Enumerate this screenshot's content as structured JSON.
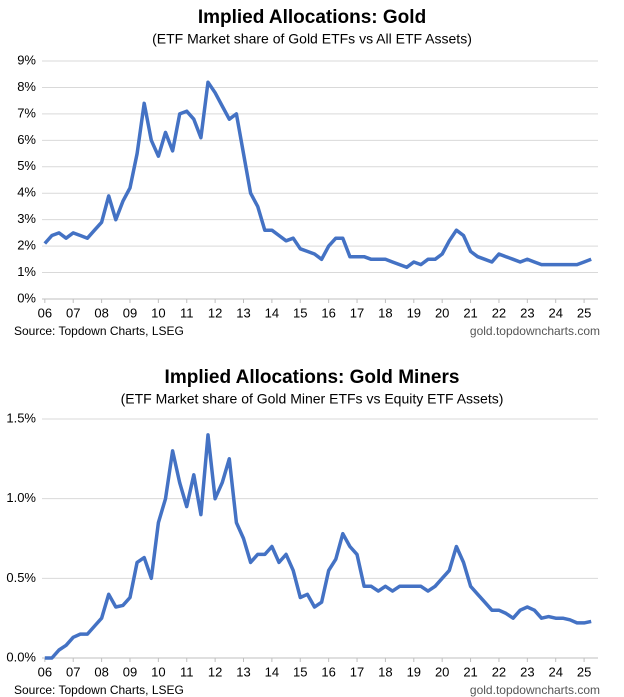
{
  "chart_data": [
    {
      "type": "line",
      "title": "Implied Allocations: Gold",
      "subtitle": "(ETF Market share of Gold ETFs vs All ETF Assets)",
      "source": "Source: Topdown Charts, LSEG",
      "credit": "gold.topdowncharts.com",
      "color": "#4472c4",
      "grid": true,
      "x": [
        2006,
        2006.25,
        2006.5,
        2006.75,
        2007,
        2007.25,
        2007.5,
        2007.75,
        2008,
        2008.25,
        2008.5,
        2008.75,
        2009,
        2009.25,
        2009.5,
        2009.75,
        2010,
        2010.25,
        2010.5,
        2010.75,
        2011,
        2011.25,
        2011.5,
        2011.75,
        2012,
        2012.25,
        2012.5,
        2012.75,
        2013,
        2013.25,
        2013.5,
        2013.75,
        2014,
        2014.25,
        2014.5,
        2014.75,
        2015,
        2015.25,
        2015.5,
        2015.75,
        2016,
        2016.25,
        2016.5,
        2016.75,
        2017,
        2017.25,
        2017.5,
        2017.75,
        2018,
        2018.25,
        2018.5,
        2018.75,
        2019,
        2019.25,
        2019.5,
        2019.75,
        2020,
        2020.25,
        2020.5,
        2020.75,
        2021,
        2021.25,
        2021.5,
        2021.75,
        2022,
        2022.25,
        2022.5,
        2022.75,
        2023,
        2023.25,
        2023.5,
        2023.75,
        2024,
        2024.25,
        2024.5,
        2024.75,
        2025,
        2025.25
      ],
      "values": [
        2.1,
        2.4,
        2.5,
        2.3,
        2.5,
        2.4,
        2.3,
        2.6,
        2.9,
        3.9,
        3.0,
        3.7,
        4.2,
        5.5,
        7.4,
        6.0,
        5.4,
        6.3,
        5.6,
        7.0,
        7.1,
        6.8,
        6.1,
        8.2,
        7.8,
        7.3,
        6.8,
        7.0,
        5.5,
        4.0,
        3.5,
        2.6,
        2.6,
        2.4,
        2.2,
        2.3,
        1.9,
        1.8,
        1.7,
        1.5,
        2.0,
        2.3,
        2.3,
        1.6,
        1.6,
        1.6,
        1.5,
        1.5,
        1.5,
        1.4,
        1.3,
        1.2,
        1.4,
        1.3,
        1.5,
        1.5,
        1.7,
        2.2,
        2.6,
        2.4,
        1.8,
        1.6,
        1.5,
        1.4,
        1.7,
        1.6,
        1.5,
        1.4,
        1.5,
        1.4,
        1.3,
        1.3,
        1.3,
        1.3,
        1.3,
        1.3,
        1.4,
        1.5
      ],
      "xlim": [
        2005.9,
        2025.49
      ],
      "ylim": [
        0,
        9
      ],
      "xticks": [
        {
          "value": 2006,
          "label": "06"
        },
        {
          "value": 2007,
          "label": "07"
        },
        {
          "value": 2008,
          "label": "08"
        },
        {
          "value": 2009,
          "label": "09"
        },
        {
          "value": 2010,
          "label": "10"
        },
        {
          "value": 2011,
          "label": "11"
        },
        {
          "value": 2012,
          "label": "12"
        },
        {
          "value": 2013,
          "label": "13"
        },
        {
          "value": 2014,
          "label": "14"
        },
        {
          "value": 2015,
          "label": "15"
        },
        {
          "value": 2016,
          "label": "16"
        },
        {
          "value": 2017,
          "label": "17"
        },
        {
          "value": 2018,
          "label": "18"
        },
        {
          "value": 2019,
          "label": "19"
        },
        {
          "value": 2020,
          "label": "20"
        },
        {
          "value": 2021,
          "label": "21"
        },
        {
          "value": 2022,
          "label": "22"
        },
        {
          "value": 2023,
          "label": "23"
        },
        {
          "value": 2024,
          "label": "24"
        },
        {
          "value": 2025,
          "label": "25"
        }
      ],
      "yticks": [
        {
          "value": 0,
          "label": "0%"
        },
        {
          "value": 1,
          "label": "1%"
        },
        {
          "value": 2,
          "label": "2%"
        },
        {
          "value": 3,
          "label": "3%"
        },
        {
          "value": 4,
          "label": "4%"
        },
        {
          "value": 5,
          "label": "5%"
        },
        {
          "value": 6,
          "label": "6%"
        },
        {
          "value": 7,
          "label": "7%"
        },
        {
          "value": 8,
          "label": "8%"
        },
        {
          "value": 9,
          "label": "9%"
        }
      ]
    },
    {
      "type": "line",
      "title": "Implied Allocations: Gold Miners",
      "subtitle": "(ETF Market share of Gold Miner ETFs vs Equity ETF Assets)",
      "source": "Source: Topdown Charts, LSEG",
      "credit": "gold.topdowncharts.com",
      "color": "#4472c4",
      "grid": true,
      "x": [
        2006,
        2006.25,
        2006.5,
        2006.75,
        2007,
        2007.25,
        2007.5,
        2007.75,
        2008,
        2008.25,
        2008.5,
        2008.75,
        2009,
        2009.25,
        2009.5,
        2009.75,
        2010,
        2010.25,
        2010.5,
        2010.75,
        2011,
        2011.25,
        2011.5,
        2011.75,
        2012,
        2012.25,
        2012.5,
        2012.75,
        2013,
        2013.25,
        2013.5,
        2013.75,
        2014,
        2014.25,
        2014.5,
        2014.75,
        2015,
        2015.25,
        2015.5,
        2015.75,
        2016,
        2016.25,
        2016.5,
        2016.75,
        2017,
        2017.25,
        2017.5,
        2017.75,
        2018,
        2018.25,
        2018.5,
        2018.75,
        2019,
        2019.25,
        2019.5,
        2019.75,
        2020,
        2020.25,
        2020.5,
        2020.75,
        2021,
        2021.25,
        2021.5,
        2021.75,
        2022,
        2022.25,
        2022.5,
        2022.75,
        2023,
        2023.25,
        2023.5,
        2023.75,
        2024,
        2024.25,
        2024.5,
        2024.75,
        2025,
        2025.25
      ],
      "values": [
        0.0,
        0.0,
        0.05,
        0.08,
        0.13,
        0.15,
        0.15,
        0.2,
        0.25,
        0.4,
        0.32,
        0.33,
        0.38,
        0.6,
        0.63,
        0.5,
        0.85,
        1.0,
        1.3,
        1.1,
        0.95,
        1.15,
        0.9,
        1.4,
        1.0,
        1.1,
        1.25,
        0.85,
        0.75,
        0.6,
        0.65,
        0.65,
        0.7,
        0.6,
        0.65,
        0.55,
        0.38,
        0.4,
        0.32,
        0.35,
        0.55,
        0.62,
        0.78,
        0.7,
        0.65,
        0.45,
        0.45,
        0.42,
        0.45,
        0.42,
        0.45,
        0.45,
        0.45,
        0.45,
        0.42,
        0.45,
        0.5,
        0.55,
        0.7,
        0.6,
        0.45,
        0.4,
        0.35,
        0.3,
        0.3,
        0.28,
        0.25,
        0.3,
        0.32,
        0.3,
        0.25,
        0.26,
        0.25,
        0.25,
        0.24,
        0.22,
        0.22,
        0.23
      ],
      "xlim": [
        2005.9,
        2025.49
      ],
      "ylim": [
        0,
        1.5
      ],
      "xticks": [
        {
          "value": 2006,
          "label": "06"
        },
        {
          "value": 2007,
          "label": "07"
        },
        {
          "value": 2008,
          "label": "08"
        },
        {
          "value": 2009,
          "label": "09"
        },
        {
          "value": 2010,
          "label": "10"
        },
        {
          "value": 2011,
          "label": "11"
        },
        {
          "value": 2012,
          "label": "12"
        },
        {
          "value": 2013,
          "label": "13"
        },
        {
          "value": 2014,
          "label": "14"
        },
        {
          "value": 2015,
          "label": "15"
        },
        {
          "value": 2016,
          "label": "16"
        },
        {
          "value": 2017,
          "label": "17"
        },
        {
          "value": 2018,
          "label": "18"
        },
        {
          "value": 2019,
          "label": "19"
        },
        {
          "value": 2020,
          "label": "20"
        },
        {
          "value": 2021,
          "label": "21"
        },
        {
          "value": 2022,
          "label": "22"
        },
        {
          "value": 2023,
          "label": "23"
        },
        {
          "value": 2024,
          "label": "24"
        },
        {
          "value": 2025,
          "label": "25"
        }
      ],
      "yticks": [
        {
          "value": 0,
          "label": "0.0%"
        },
        {
          "value": 0.5,
          "label": "0.5%"
        },
        {
          "value": 1,
          "label": "1.0%"
        },
        {
          "value": 1.5,
          "label": "1.5%"
        }
      ]
    }
  ]
}
